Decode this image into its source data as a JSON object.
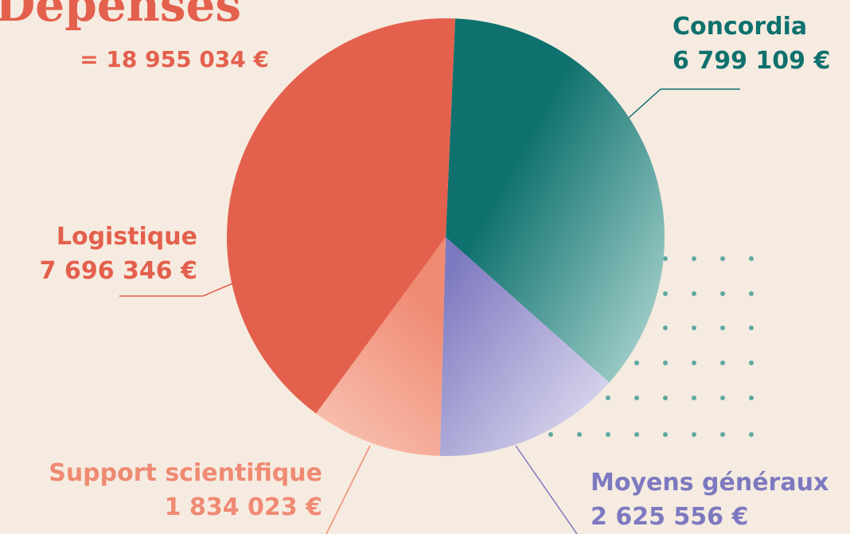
{
  "chart_data": {
    "type": "pie",
    "title": "Dépenses",
    "subtitle": "= 18 955 034 €",
    "categories": [
      "Concordia",
      "Moyens généraux",
      "Support scientifique",
      "Logistique"
    ],
    "values": [
      6799109,
      2625556,
      1834023,
      7696346
    ],
    "value_labels": [
      "6 799 109 €",
      "2 625 556 €",
      "1 834 023 €",
      "7 696 346 €"
    ],
    "colors": [
      [
        "#0e716e",
        "#a4d0cb"
      ],
      [
        "#7d79c0",
        "#dcd9ef"
      ],
      [
        "#ef8a73",
        "#f8bcab"
      ],
      [
        "#e3604d",
        "#e3604d"
      ]
    ]
  }
}
